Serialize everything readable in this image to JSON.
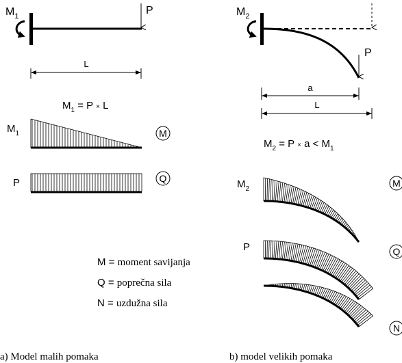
{
  "left": {
    "moment_label": "M",
    "moment_sub": "1",
    "force_label": "P",
    "length_label": "L",
    "equation": {
      "lhs": "M",
      "lhs_sub": "1",
      "eq": " = P ",
      "times": "×",
      "rhs": " L"
    },
    "diagram_moment": {
      "label": "M",
      "sub": "1",
      "tag": "M"
    },
    "diagram_shear": {
      "label": "P",
      "tag": "Q"
    },
    "caption": "a) Model malih pomaka"
  },
  "right": {
    "moment_label": "M",
    "moment_sub": "2",
    "force_label": "P",
    "deflection_label": "a",
    "length_label": "L",
    "equation": {
      "lhs": "M",
      "lhs_sub": "2",
      "eq": " = P ",
      "times": "×",
      "rhs": " a < M",
      "rhs_sub": "1"
    },
    "diagram_moment": {
      "label": "M",
      "sub": "2",
      "tag": "M"
    },
    "diagram_shear": {
      "label": "P",
      "tag": "Q"
    },
    "diagram_axial": {
      "tag": "N"
    },
    "caption": "b) model velikih pomaka"
  },
  "legend": [
    {
      "key": "M",
      "sep": " = ",
      "desc": "moment savijanja"
    },
    {
      "key": "Q",
      "sep": " = ",
      "desc": "poprečna sila"
    },
    {
      "key": "N",
      "sep": " = ",
      "desc": "uzdužna sila"
    }
  ]
}
